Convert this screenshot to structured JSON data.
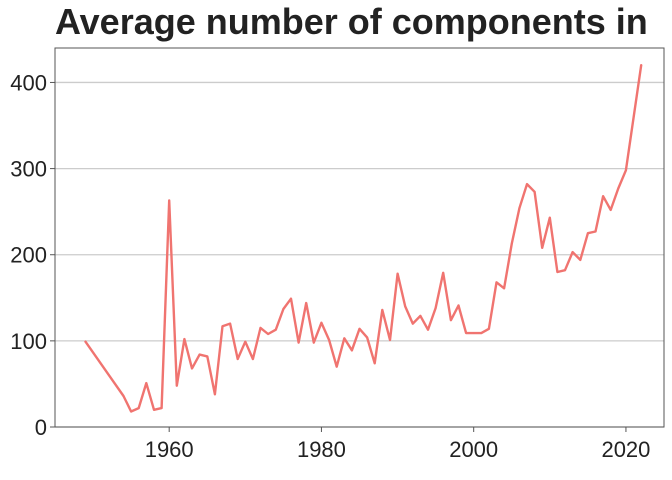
{
  "chart_data": {
    "type": "line",
    "title": "Average number of components in",
    "xlabel": "",
    "ylabel": "",
    "xlim": [
      1945,
      2025
    ],
    "ylim": [
      0,
      440
    ],
    "x_ticks": [
      1960,
      1980,
      2000,
      2020
    ],
    "y_ticks": [
      0,
      100,
      200,
      300,
      400
    ],
    "grid": "horizontal",
    "colors": {
      "line": "#f07470",
      "grid": "#cccccc",
      "axis": "#555555",
      "text": "#222222"
    },
    "series": [
      {
        "x": [
          1949,
          1954,
          1955,
          1956,
          1957,
          1958,
          1959,
          1960,
          1961,
          1962,
          1963,
          1964,
          1965,
          1966,
          1967,
          1968,
          1969,
          1970,
          1971,
          1972,
          1973,
          1974,
          1975,
          1976,
          1977,
          1978,
          1979,
          1980,
          1981,
          1982,
          1983,
          1984,
          1985,
          1986,
          1987,
          1988,
          1989,
          1990,
          1991,
          1992,
          1993,
          1994,
          1995,
          1996,
          1997,
          1998,
          1999,
          2000,
          2001,
          2002,
          2003,
          2004,
          2005,
          2006,
          2007,
          2008,
          2009,
          2010,
          2011,
          2012,
          2013,
          2014,
          2015,
          2016,
          2017,
          2018,
          2019,
          2020,
          2022
        ],
        "y": [
          99,
          36,
          18,
          22,
          51,
          20,
          22,
          263,
          48,
          102,
          68,
          84,
          82,
          38,
          117,
          120,
          79,
          99,
          79,
          115,
          108,
          113,
          137,
          149,
          98,
          144,
          98,
          121,
          101,
          70,
          103,
          89,
          114,
          104,
          74,
          136,
          101,
          178,
          140,
          120,
          129,
          113,
          138,
          179,
          124,
          141,
          109,
          109,
          109,
          114,
          168,
          161,
          213,
          254,
          282,
          273,
          208,
          243,
          180,
          182,
          203,
          194,
          225,
          227,
          268,
          252,
          277,
          298,
          420
        ]
      }
    ]
  }
}
